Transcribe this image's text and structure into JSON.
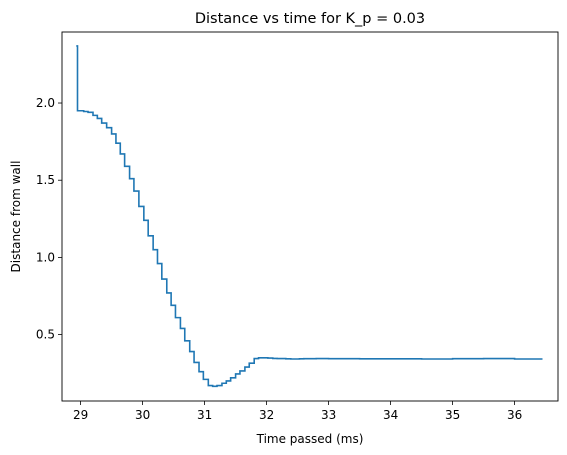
{
  "chart_data": {
    "type": "line",
    "title": "Distance vs time for K_p = 0.03",
    "xlabel": "Time passed (ms)",
    "ylabel": "Distance from wall",
    "xlim": [
      28.7,
      36.7
    ],
    "ylim": [
      0.07,
      2.46
    ],
    "x_ticks": [
      29,
      30,
      31,
      32,
      33,
      34,
      35,
      36
    ],
    "y_ticks": [
      0.5,
      1.0,
      1.5,
      2.0
    ],
    "x_tick_labels": [
      "29",
      "30",
      "31",
      "32",
      "33",
      "34",
      "35",
      "36"
    ],
    "y_tick_labels": [
      "0.5",
      "1.0",
      "1.5",
      "2.0"
    ],
    "grid": false,
    "line_color": "#1f77b4",
    "step": "post",
    "series": [
      {
        "x": [
          28.93,
          28.95,
          29.05,
          29.12,
          29.2,
          29.27,
          29.34,
          29.42,
          29.5,
          29.57,
          29.64,
          29.71,
          29.79,
          29.86,
          29.94,
          30.02,
          30.09,
          30.17,
          30.24,
          30.31,
          30.39,
          30.46,
          30.53,
          30.61,
          30.68,
          30.76,
          30.83,
          30.91,
          30.98,
          31.06,
          31.13,
          31.2,
          31.28,
          31.35,
          31.42,
          31.5,
          31.57,
          31.65,
          31.72,
          31.8,
          31.87,
          31.95,
          32.02,
          32.1,
          32.17,
          32.24,
          32.31,
          32.39,
          32.46,
          32.53,
          32.6,
          32.67,
          32.8,
          33.0,
          33.5,
          34.0,
          34.5,
          35.0,
          35.5,
          36.0,
          36.45
        ],
        "y": [
          2.37,
          1.95,
          1.945,
          1.94,
          1.92,
          1.9,
          1.87,
          1.84,
          1.8,
          1.74,
          1.67,
          1.59,
          1.51,
          1.43,
          1.33,
          1.24,
          1.14,
          1.05,
          0.96,
          0.86,
          0.77,
          0.69,
          0.61,
          0.54,
          0.46,
          0.39,
          0.32,
          0.26,
          0.21,
          0.17,
          0.165,
          0.17,
          0.185,
          0.2,
          0.22,
          0.245,
          0.265,
          0.29,
          0.315,
          0.345,
          0.35,
          0.35,
          0.348,
          0.346,
          0.345,
          0.345,
          0.343,
          0.342,
          0.342,
          0.343,
          0.344,
          0.344,
          0.345,
          0.344,
          0.343,
          0.343,
          0.342,
          0.344,
          0.345,
          0.342,
          0.342
        ]
      }
    ]
  }
}
